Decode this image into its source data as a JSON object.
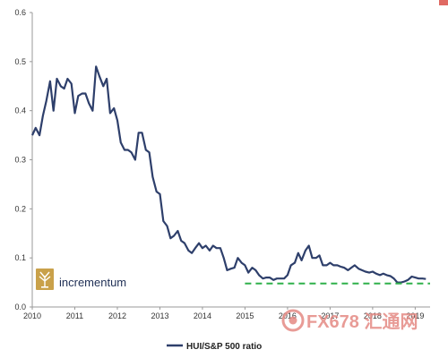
{
  "chart_data": {
    "type": "line",
    "title": "",
    "xlabel": "",
    "ylabel": "",
    "xlim": [
      2010,
      2019.35
    ],
    "ylim": [
      0,
      0.6
    ],
    "yticks": [
      0,
      0.1,
      0.2,
      0.3,
      0.4,
      0.5,
      0.6
    ],
    "ytick_labels": [
      "0.0",
      "0.1",
      "0.2",
      "0.3",
      "0.4",
      "0.5",
      "0.6"
    ],
    "xticks": [
      2010,
      2011,
      2012,
      2013,
      2014,
      2015,
      2016,
      2017,
      2018,
      2019
    ],
    "xtick_labels": [
      "2010",
      "2011",
      "2012",
      "2013",
      "2014",
      "2015",
      "2016",
      "2017",
      "2018",
      "2019"
    ],
    "grid": false,
    "legend_position": "bottom-center",
    "series": [
      {
        "name": "HUI/S&P 500 ratio",
        "color": "#2e3f6b",
        "x": [
          2010.0,
          2010.08,
          2010.17,
          2010.25,
          2010.33,
          2010.42,
          2010.5,
          2010.58,
          2010.67,
          2010.75,
          2010.83,
          2010.92,
          2011.0,
          2011.08,
          2011.17,
          2011.25,
          2011.33,
          2011.42,
          2011.5,
          2011.58,
          2011.67,
          2011.75,
          2011.83,
          2011.92,
          2012.0,
          2012.08,
          2012.17,
          2012.25,
          2012.33,
          2012.42,
          2012.5,
          2012.58,
          2012.67,
          2012.75,
          2012.83,
          2012.92,
          2013.0,
          2013.08,
          2013.17,
          2013.25,
          2013.33,
          2013.42,
          2013.5,
          2013.58,
          2013.67,
          2013.75,
          2013.83,
          2013.92,
          2014.0,
          2014.08,
          2014.17,
          2014.25,
          2014.33,
          2014.42,
          2014.5,
          2014.58,
          2014.67,
          2014.75,
          2014.83,
          2014.92,
          2015.0,
          2015.08,
          2015.17,
          2015.25,
          2015.33,
          2015.42,
          2015.5,
          2015.58,
          2015.67,
          2015.75,
          2015.83,
          2015.92,
          2016.0,
          2016.08,
          2016.17,
          2016.25,
          2016.33,
          2016.42,
          2016.5,
          2016.58,
          2016.67,
          2016.75,
          2016.83,
          2016.92,
          2017.0,
          2017.08,
          2017.17,
          2017.25,
          2017.33,
          2017.42,
          2017.5,
          2017.58,
          2017.67,
          2017.75,
          2017.83,
          2017.92,
          2018.0,
          2018.08,
          2018.17,
          2018.25,
          2018.33,
          2018.42,
          2018.5,
          2018.58,
          2018.67,
          2018.75,
          2018.83,
          2018.92,
          2019.0,
          2019.08,
          2019.17,
          2019.25
        ],
        "y": [
          0.35,
          0.365,
          0.35,
          0.39,
          0.42,
          0.46,
          0.4,
          0.465,
          0.45,
          0.445,
          0.465,
          0.455,
          0.395,
          0.43,
          0.435,
          0.435,
          0.415,
          0.4,
          0.49,
          0.47,
          0.45,
          0.465,
          0.395,
          0.405,
          0.38,
          0.335,
          0.32,
          0.32,
          0.315,
          0.3,
          0.355,
          0.355,
          0.32,
          0.315,
          0.265,
          0.235,
          0.23,
          0.175,
          0.165,
          0.14,
          0.145,
          0.155,
          0.135,
          0.13,
          0.115,
          0.11,
          0.12,
          0.13,
          0.12,
          0.125,
          0.115,
          0.125,
          0.12,
          0.12,
          0.1,
          0.075,
          0.078,
          0.08,
          0.1,
          0.09,
          0.085,
          0.07,
          0.08,
          0.075,
          0.065,
          0.058,
          0.06,
          0.06,
          0.055,
          0.058,
          0.058,
          0.058,
          0.065,
          0.085,
          0.09,
          0.11,
          0.095,
          0.115,
          0.125,
          0.1,
          0.1,
          0.105,
          0.085,
          0.085,
          0.09,
          0.085,
          0.085,
          0.082,
          0.08,
          0.075,
          0.08,
          0.085,
          0.078,
          0.075,
          0.072,
          0.07,
          0.072,
          0.068,
          0.065,
          0.068,
          0.065,
          0.063,
          0.058,
          0.05,
          0.05,
          0.052,
          0.055,
          0.062,
          0.06,
          0.058,
          0.058,
          0.057
        ]
      },
      {
        "color": "#2fb04a",
        "style": "dashed",
        "x": [
          2015.0,
          2019.35
        ],
        "y": [
          0.048,
          0.048
        ]
      }
    ]
  },
  "legend": {
    "label": "HUI/S&P 500 ratio",
    "color": "#2e3f6b"
  },
  "brand": {
    "name": "incrementum",
    "icon": "tree-icon",
    "color": "#c9a14a"
  },
  "watermark": {
    "text": "FX678 汇通网",
    "icon": "fx678-logo-icon",
    "color": "#e06a63"
  }
}
